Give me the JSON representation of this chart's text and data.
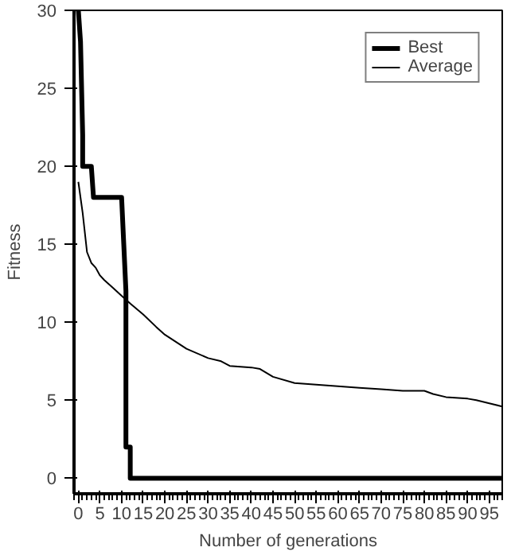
{
  "chart_data": {
    "type": "line",
    "xlabel": "Number of generations",
    "ylabel": "Fitness",
    "xlim": [
      -1,
      98
    ],
    "ylim": [
      -1,
      30
    ],
    "xticks": [
      0,
      5,
      10,
      15,
      20,
      25,
      30,
      35,
      40,
      45,
      50,
      55,
      60,
      65,
      70,
      75,
      80,
      85,
      90,
      95
    ],
    "yticks": [
      0,
      5,
      10,
      15,
      20,
      25,
      30
    ],
    "grid": false,
    "legend": "top right",
    "series": [
      {
        "name": "Best",
        "color": "#000000",
        "x": [
          0,
          0.5,
          1,
          1,
          3,
          3.5,
          4,
          10,
          10.5,
          11,
          11,
          12,
          12,
          98
        ],
        "values": [
          30,
          28,
          22,
          20,
          20,
          18,
          18,
          18,
          15,
          12,
          2,
          2,
          0,
          0
        ]
      },
      {
        "name": "Average",
        "color": "#000000",
        "x": [
          0,
          1,
          2,
          3,
          4,
          5,
          6,
          8,
          10,
          12,
          15,
          18,
          20,
          25,
          30,
          33,
          35,
          40,
          42,
          45,
          50,
          55,
          60,
          65,
          70,
          75,
          80,
          82,
          85,
          90,
          92,
          95,
          98
        ],
        "values": [
          19,
          17,
          14.5,
          13.8,
          13.5,
          13,
          12.7,
          12.2,
          11.7,
          11.2,
          10.5,
          9.7,
          9.2,
          8.3,
          7.7,
          7.5,
          7.2,
          7.1,
          7,
          6.5,
          6.1,
          6,
          5.9,
          5.8,
          5.7,
          5.6,
          5.6,
          5.4,
          5.2,
          5.1,
          5,
          4.8,
          4.6
        ]
      }
    ]
  }
}
